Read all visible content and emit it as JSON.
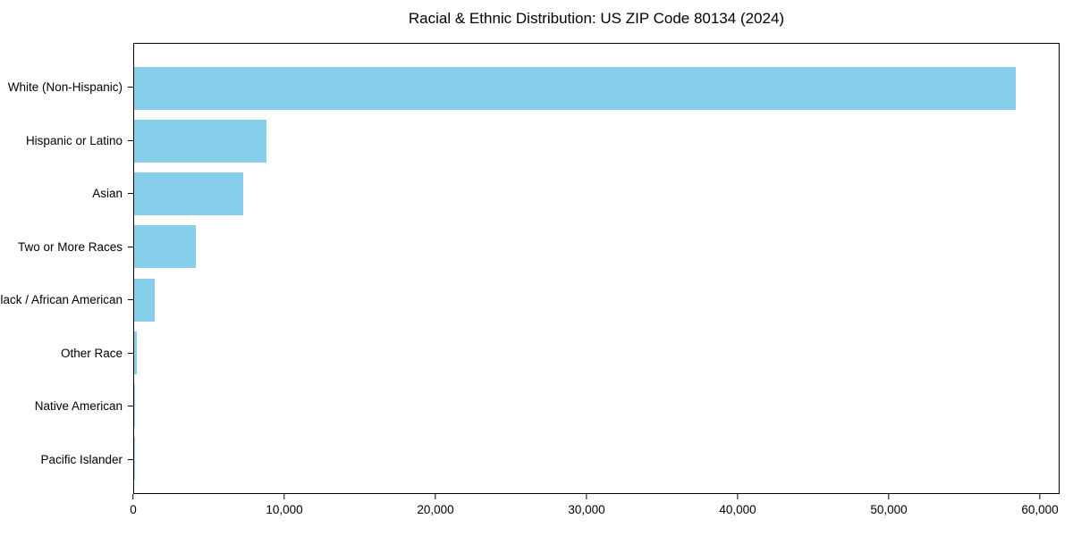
{
  "chart_data": {
    "type": "bar",
    "orientation": "horizontal",
    "title": "Racial & Ethnic Distribution: US ZIP Code 80134 (2024)",
    "categories": [
      "White (Non-Hispanic)",
      "Hispanic or Latino",
      "Asian",
      "Two or More Races",
      "Black / African American",
      "Other Race",
      "Native American",
      "Pacific Islander"
    ],
    "values": [
      58450,
      8760,
      7220,
      4080,
      1360,
      200,
      50,
      20
    ],
    "xlabel": "",
    "ylabel": "",
    "xlim": [
      0,
      61300
    ],
    "x_ticks": [
      {
        "value": 0,
        "label": "0"
      },
      {
        "value": 10000,
        "label": "10,000"
      },
      {
        "value": 20000,
        "label": "20,000"
      },
      {
        "value": 30000,
        "label": "30,000"
      },
      {
        "value": 40000,
        "label": "40,000"
      },
      {
        "value": 50000,
        "label": "50,000"
      },
      {
        "value": 60000,
        "label": "60,000"
      }
    ],
    "grid": false,
    "legend": "none",
    "bar_color": "#87CEEB",
    "spine_color": "#000000",
    "text_color": "#000000",
    "background_color": "#ffffff"
  }
}
